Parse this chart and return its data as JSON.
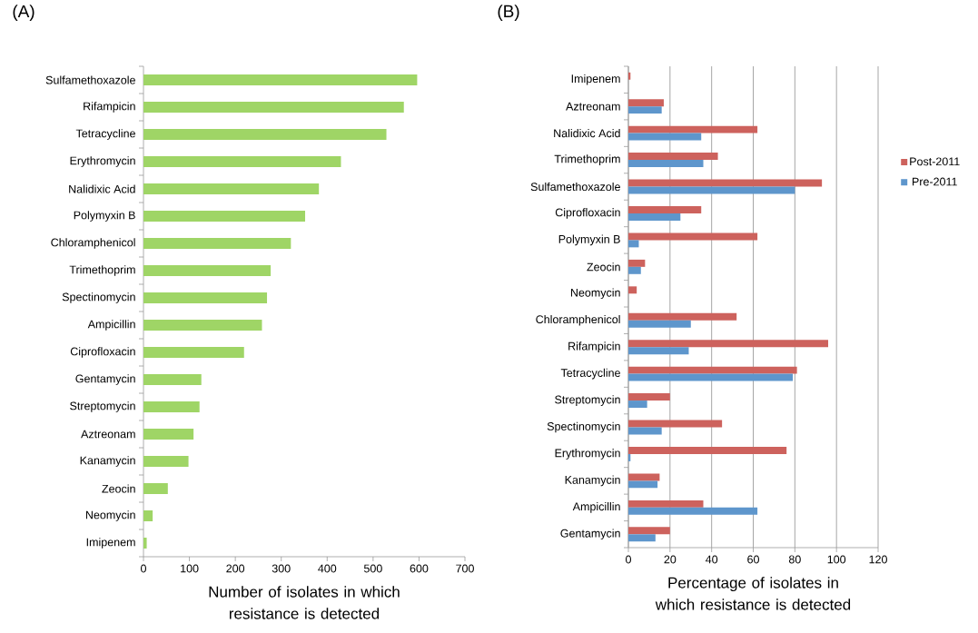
{
  "chart_data": [
    {
      "type": "bar",
      "orientation": "horizontal",
      "title": "(A)",
      "xlabel": "Number of isolates in which resistance is detected",
      "categories": [
        "Sulfamethoxazole",
        "Rifampicin",
        "Tetracycline",
        "Erythromycin",
        "Nalidixic Acid",
        "Polymyxin B",
        "Chloramphenicol",
        "Trimethoprim",
        "Spectinomycin",
        "Ampicillin",
        "Ciprofloxacin",
        "Gentamycin",
        "Streptomycin",
        "Aztreonam",
        "Kanamycin",
        "Zeocin",
        "Neomycin",
        "Imipenem"
      ],
      "values": [
        596,
        567,
        529,
        430,
        382,
        352,
        321,
        277,
        269,
        258,
        219,
        126,
        122,
        109,
        98,
        53,
        20,
        7
      ],
      "color": "#9fd566",
      "xlim": [
        0,
        700
      ],
      "xticks": [
        0,
        100,
        200,
        300,
        400,
        500,
        600,
        700
      ],
      "grid": false,
      "legend": false
    },
    {
      "type": "bar",
      "orientation": "horizontal",
      "title": "(B)",
      "xlabel": "Percentage of isolates in which resistance is detected",
      "categories": [
        "Imipenem",
        "Aztreonam",
        "Nalidixic Acid",
        "Trimethoprim",
        "Sulfamethoxazole",
        "Ciprofloxacin",
        "Polymyxin B",
        "Zeocin",
        "Neomycin",
        "Chloramphenicol",
        "Rifampicin",
        "Tetracycline",
        "Streptomycin",
        "Spectinomycin",
        "Erythromycin",
        "Kanamycin",
        "Ampicillin",
        "Gentamycin"
      ],
      "series": [
        {
          "name": "Post-2011",
          "color": "#cd625d",
          "values": [
            1,
            17,
            62,
            43,
            93,
            35,
            62,
            8,
            4,
            52,
            96,
            81,
            20,
            45,
            76,
            15,
            36,
            20
          ]
        },
        {
          "name": "Pre-2011",
          "color": "#5e96cc",
          "values": [
            null,
            16,
            35,
            36,
            80,
            25,
            5,
            6,
            null,
            30,
            29,
            79,
            9,
            16,
            1,
            14,
            62,
            13
          ]
        }
      ],
      "xlim": [
        0,
        120
      ],
      "xticks": [
        0,
        20,
        40,
        60,
        80,
        100,
        120
      ],
      "grid": "x",
      "legend": "right"
    }
  ]
}
